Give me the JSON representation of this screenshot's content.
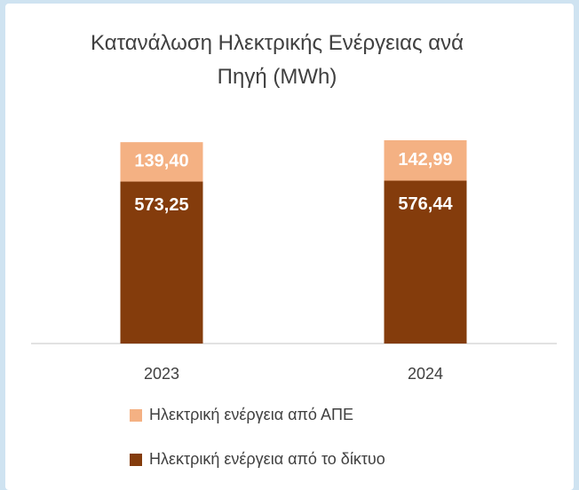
{
  "chart_data": {
    "type": "stacked-bar",
    "title": "Κατανάλωση Ηλεκτρικής Ενέργειας ανά Πηγή (MWh)",
    "categories": [
      "2023",
      "2024"
    ],
    "series": [
      {
        "name": "Ηλεκτρική ενέργεια από το δίκτυο",
        "color": "#843c0c",
        "values": [
          573.25,
          576.44
        ],
        "value_labels": [
          "573,25",
          "576,44"
        ]
      },
      {
        "name": "Ηλεκτρική ενέργεια από ΑΠΕ",
        "color": "#f4b183",
        "values": [
          139.4,
          142.99
        ],
        "value_labels": [
          "139,40",
          "142,99"
        ]
      }
    ]
  }
}
